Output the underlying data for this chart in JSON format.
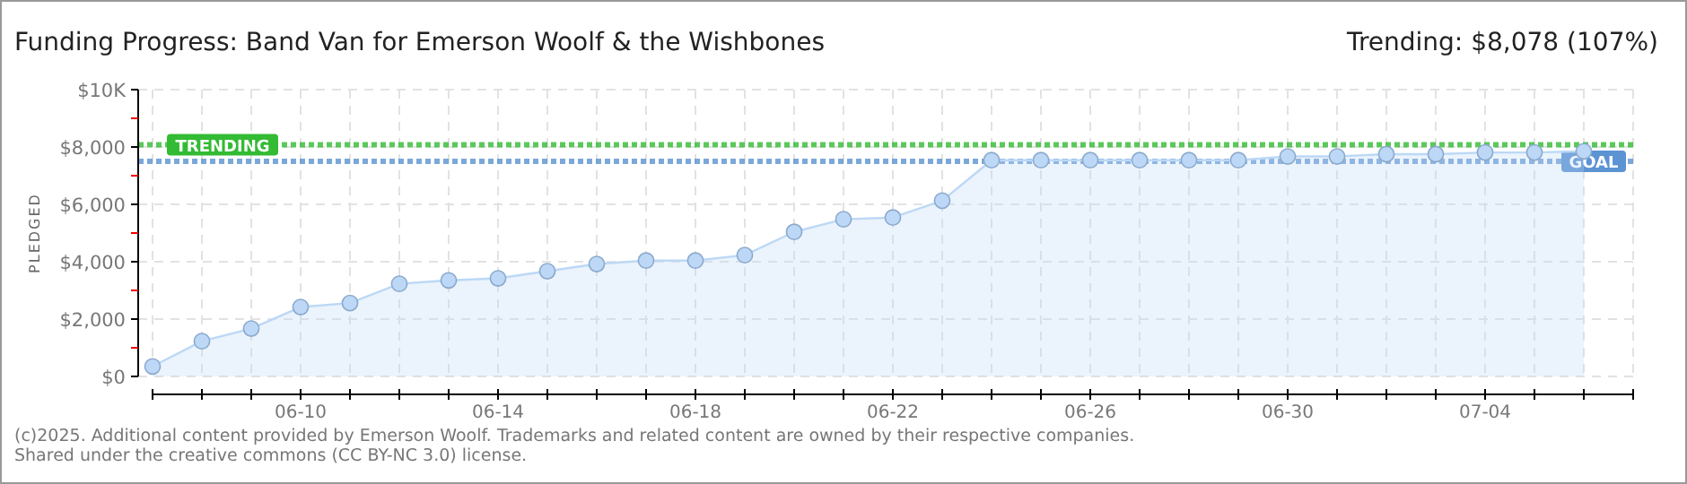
{
  "chart_data": {
    "type": "area",
    "title": "Funding Progress: Band Van for Emerson Woolf & the Wishbones",
    "subtitle": "Trending: $8,078 (107%)",
    "ylabel": "PLEDGED",
    "x": [
      "--06-07",
      "--06-08",
      "--06-09",
      "--06-10",
      "--06-11",
      "--06-12",
      "--06-13",
      "--06-14",
      "--06-15",
      "--06-16",
      "--06-17",
      "--06-18",
      "--06-19",
      "--06-20",
      "--06-21",
      "--06-22",
      "--06-23",
      "--06-24",
      "--06-25",
      "--06-26",
      "--06-27",
      "--06-28",
      "--06-29",
      "--06-30",
      "--07-01",
      "--07-02",
      "--07-03",
      "--07-04",
      "--07-05",
      "--07-06"
    ],
    "series": [
      {
        "color": "#bcd8f6",
        "values": [
          350,
          1230,
          1670,
          2420,
          2560,
          3230,
          3350,
          3420,
          3670,
          3920,
          4040,
          4040,
          4230,
          5040,
          5480,
          5540,
          6130,
          7540,
          7540,
          7540,
          7540,
          7540,
          7540,
          7670,
          7670,
          7750,
          7750,
          7810,
          7810,
          7850
        ]
      }
    ],
    "xlim": [
      "--06-07",
      "--07-07"
    ],
    "xticks": [
      {
        "value": "--06-07",
        "label": null
      },
      {
        "value": "--06-08",
        "label": null
      },
      {
        "value": "--06-09",
        "label": null
      },
      {
        "value": "--06-10",
        "label": "06-10"
      },
      {
        "value": "--06-11",
        "label": null
      },
      {
        "value": "--06-12",
        "label": null
      },
      {
        "value": "--06-13",
        "label": null
      },
      {
        "value": "--06-14",
        "label": "06-14"
      },
      {
        "value": "--06-15",
        "label": null
      },
      {
        "value": "--06-16",
        "label": null
      },
      {
        "value": "--06-17",
        "label": null
      },
      {
        "value": "--06-18",
        "label": "06-18"
      },
      {
        "value": "--06-19",
        "label": null
      },
      {
        "value": "--06-20",
        "label": null
      },
      {
        "value": "--06-21",
        "label": null
      },
      {
        "value": "--06-22",
        "label": "06-22"
      },
      {
        "value": "--06-23",
        "label": null
      },
      {
        "value": "--06-24",
        "label": null
      },
      {
        "value": "--06-25",
        "label": null
      },
      {
        "value": "--06-26",
        "label": "06-26"
      },
      {
        "value": "--06-27",
        "label": null
      },
      {
        "value": "--06-28",
        "label": null
      },
      {
        "value": "--06-29",
        "label": null
      },
      {
        "value": "--06-30",
        "label": "06-30"
      },
      {
        "value": "--07-01",
        "label": null
      },
      {
        "value": "--07-02",
        "label": null
      },
      {
        "value": "--07-03",
        "label": null
      },
      {
        "value": "--07-04",
        "label": "07-04"
      },
      {
        "value": "--07-05",
        "label": null
      },
      {
        "value": "--07-06",
        "label": null
      },
      {
        "value": "--07-07",
        "label": null
      }
    ],
    "ylim": [
      0,
      10000
    ],
    "yticks": [
      {
        "value": 0,
        "label": "$0"
      },
      {
        "value": 1000,
        "label": null
      },
      {
        "value": 2000,
        "label": "$2,000"
      },
      {
        "value": 3000,
        "label": null
      },
      {
        "value": 4000,
        "label": "$4,000"
      },
      {
        "value": 5000,
        "label": null
      },
      {
        "value": 6000,
        "label": "$6,000"
      },
      {
        "value": 7000,
        "label": null
      },
      {
        "value": 8000,
        "label": "$8,000"
      },
      {
        "value": 9000,
        "label": null
      },
      {
        "value": 10000,
        "label": "$10K"
      }
    ],
    "ref_lines": [
      {
        "axis": "y",
        "value": 8078,
        "label": "TRENDING",
        "color": "#33bb33",
        "line_style": "dotted"
      },
      {
        "axis": "y",
        "value": 7500,
        "label": "GOAL",
        "color": "#5b93d3",
        "line_style": "dotted"
      }
    ],
    "grid": true,
    "marker": "circle",
    "line_style": "solid",
    "annotations": [
      "(c)2025. Additional content provided by Emerson Woolf. Trademarks and related content are owned by their respective companies.",
      "Shared under the creative commons (CC BY-NC 3.0) license."
    ]
  }
}
